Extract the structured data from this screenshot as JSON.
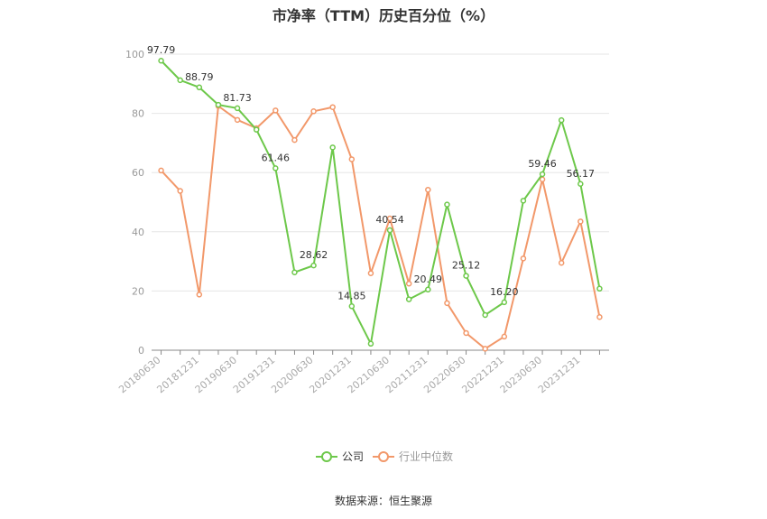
{
  "chart_data": {
    "type": "line",
    "title": "市净率（TTM）历史百分位（%）",
    "source": "数据来源：恒生聚源",
    "ylim": [
      0,
      100
    ],
    "yticks": [
      0,
      20,
      40,
      60,
      80,
      100
    ],
    "grid": true,
    "legend_position": "bottom",
    "x": [
      "20180630",
      "20180930",
      "20181231",
      "20190331",
      "20190630",
      "20190930",
      "20191231",
      "20200331",
      "20200630",
      "20200930",
      "20201231",
      "20210331",
      "20210630",
      "20210930",
      "20211231",
      "20220331",
      "20220630",
      "20220930",
      "20221231",
      "20230331",
      "20230630",
      "20230930",
      "20231231",
      "20240331"
    ],
    "xtick_labels": [
      "20180630",
      "20181231",
      "20190630",
      "20191231",
      "20200630",
      "20201231",
      "20210630",
      "20211231",
      "20220630",
      "20221231",
      "20230630",
      "20231231"
    ],
    "series": [
      {
        "name": "公司",
        "color": "#6dc84a",
        "values": [
          97.79,
          91.2,
          88.79,
          82.9,
          81.73,
          74.5,
          61.46,
          26.3,
          28.62,
          68.5,
          14.85,
          2.2,
          40.54,
          17.2,
          20.49,
          49.2,
          25.12,
          11.9,
          16.2,
          50.5,
          59.46,
          77.7,
          56.17,
          20.8
        ],
        "labels": {
          "0": "97.79",
          "2": "88.79",
          "4": "81.73",
          "6": "61.46",
          "8": "28.62",
          "10": "14.85",
          "12": "40.54",
          "14": "20.49",
          "16": "25.12",
          "18": "16.20",
          "20": "59.46",
          "22": "56.17"
        }
      },
      {
        "name": "行业中位数",
        "color": "#f2986a",
        "values": [
          60.7,
          53.8,
          18.8,
          82.5,
          77.8,
          75.0,
          81.0,
          71.0,
          80.7,
          82.1,
          64.5,
          26.0,
          44.5,
          22.5,
          54.2,
          15.9,
          5.8,
          0.5,
          4.6,
          31.0,
          57.7,
          29.5,
          43.5,
          11.2
        ]
      }
    ]
  }
}
